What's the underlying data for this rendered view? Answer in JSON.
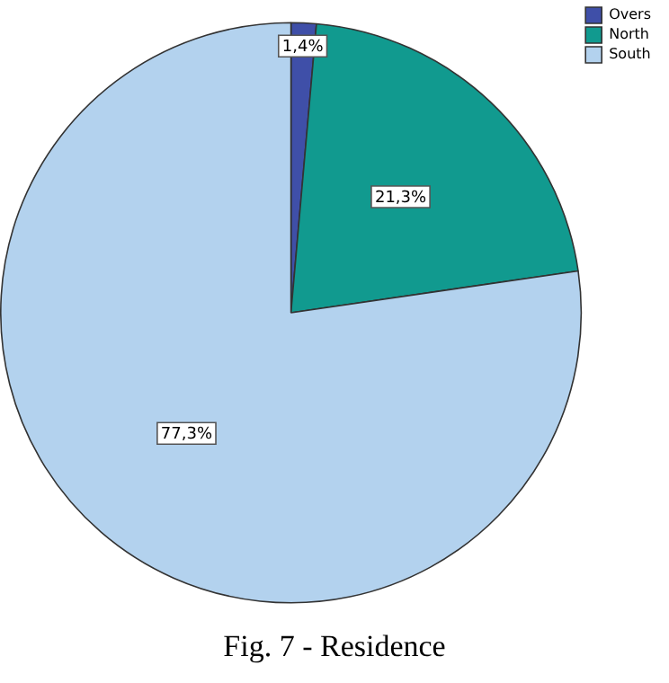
{
  "chart_data": {
    "type": "pie",
    "categories": [
      "Overs",
      "North",
      "South"
    ],
    "values": [
      1.4,
      21.3,
      77.3
    ],
    "value_labels": [
      "1,4%",
      "21,3%",
      "77,3%"
    ],
    "colors": [
      "#3f4fa8",
      "#119a8f",
      "#b3d2ee"
    ],
    "legend": "top right",
    "annotations": [
      "Fig. 7 - Residence"
    ]
  }
}
